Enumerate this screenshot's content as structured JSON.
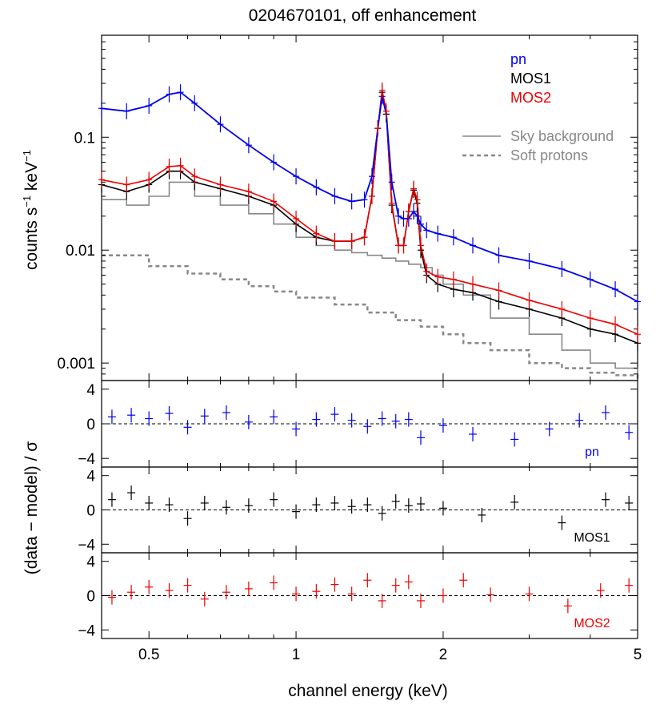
{
  "figure": {
    "title": "0204670101, off enhancement",
    "xlabel": "channel energy (keV)",
    "ylabel_main": "counts s",
    "ylabel_main_sup1": "−1",
    "ylabel_main_mid": " keV",
    "ylabel_main_sup2": "−1",
    "ylabel_resid": "(data − model) / σ"
  },
  "colors": {
    "pn": "#0000ee",
    "mos1": "#000000",
    "mos2": "#ee0000",
    "sky": "#888888",
    "sp": "#888888"
  },
  "chart_data": [
    {
      "type": "line",
      "panel": "spectrum",
      "xscale": "log",
      "yscale": "log",
      "xlim": [
        0.4,
        5.0
      ],
      "ylim": [
        0.0007,
        0.8
      ],
      "xticks": [
        0.5,
        1,
        2,
        5
      ],
      "xtick_labels": [
        "0.5",
        "1",
        "2",
        "5"
      ],
      "yticks": [
        0.001,
        0.01,
        0.1
      ],
      "ytick_labels": [
        "0.001",
        "0.01",
        "0.1"
      ],
      "legend": [
        {
          "label": "pn",
          "color": "#0000ee"
        },
        {
          "label": "MOS1",
          "color": "#000000"
        },
        {
          "label": "MOS2",
          "color": "#ee0000"
        }
      ],
      "legend2": [
        {
          "label": "Sky background",
          "style": "solid"
        },
        {
          "label": "Soft protons",
          "style": "dashed"
        }
      ],
      "series": [
        {
          "name": "pn",
          "x": [
            0.4,
            0.45,
            0.5,
            0.55,
            0.58,
            0.62,
            0.7,
            0.8,
            0.9,
            1.0,
            1.1,
            1.2,
            1.3,
            1.38,
            1.43,
            1.47,
            1.5,
            1.53,
            1.57,
            1.62,
            1.66,
            1.7,
            1.74,
            1.77,
            1.8,
            1.85,
            1.95,
            2.1,
            2.3,
            2.6,
            3.0,
            3.5,
            4.0,
            4.5,
            5.0
          ],
          "y": [
            0.18,
            0.17,
            0.19,
            0.24,
            0.25,
            0.2,
            0.13,
            0.085,
            0.06,
            0.045,
            0.036,
            0.03,
            0.027,
            0.028,
            0.045,
            0.12,
            0.23,
            0.16,
            0.04,
            0.02,
            0.019,
            0.019,
            0.022,
            0.02,
            0.017,
            0.015,
            0.014,
            0.013,
            0.011,
            0.009,
            0.008,
            0.0068,
            0.0055,
            0.0045,
            0.0035
          ]
        },
        {
          "name": "MOS1",
          "x": [
            0.4,
            0.45,
            0.5,
            0.55,
            0.58,
            0.62,
            0.7,
            0.8,
            0.9,
            1.0,
            1.1,
            1.2,
            1.3,
            1.38,
            1.43,
            1.47,
            1.5,
            1.53,
            1.57,
            1.62,
            1.66,
            1.7,
            1.74,
            1.77,
            1.8,
            1.85,
            1.95,
            2.1,
            2.3,
            2.6,
            3.0,
            3.5,
            4.0,
            4.5,
            5.0
          ],
          "y": [
            0.038,
            0.033,
            0.038,
            0.05,
            0.05,
            0.04,
            0.035,
            0.03,
            0.025,
            0.017,
            0.013,
            0.012,
            0.012,
            0.013,
            0.03,
            0.12,
            0.25,
            0.16,
            0.025,
            0.011,
            0.011,
            0.022,
            0.034,
            0.026,
            0.01,
            0.006,
            0.005,
            0.0045,
            0.0042,
            0.0035,
            0.003,
            0.0025,
            0.002,
            0.0018,
            0.0015
          ]
        },
        {
          "name": "MOS2",
          "x": [
            0.4,
            0.45,
            0.5,
            0.55,
            0.58,
            0.62,
            0.7,
            0.8,
            0.9,
            1.0,
            1.1,
            1.2,
            1.3,
            1.38,
            1.43,
            1.47,
            1.5,
            1.53,
            1.57,
            1.62,
            1.66,
            1.7,
            1.74,
            1.77,
            1.8,
            1.85,
            1.95,
            2.1,
            2.3,
            2.6,
            3.0,
            3.5,
            4.0,
            4.5,
            5.0
          ],
          "y": [
            0.042,
            0.038,
            0.042,
            0.055,
            0.056,
            0.045,
            0.038,
            0.033,
            0.027,
            0.019,
            0.014,
            0.012,
            0.012,
            0.013,
            0.03,
            0.12,
            0.26,
            0.17,
            0.026,
            0.011,
            0.011,
            0.022,
            0.035,
            0.028,
            0.011,
            0.0065,
            0.0058,
            0.0055,
            0.005,
            0.0044,
            0.0036,
            0.003,
            0.0025,
            0.0022,
            0.0018
          ]
        },
        {
          "name": "Sky background",
          "x": [
            0.4,
            0.45,
            0.5,
            0.55,
            0.58,
            0.62,
            0.7,
            0.8,
            0.9,
            1.0,
            1.1,
            1.2,
            1.3,
            1.4,
            1.5,
            1.6,
            1.7,
            1.8,
            1.9,
            2.0,
            2.2,
            2.5,
            3.0,
            3.5,
            4.0,
            4.5,
            5.0
          ],
          "y": [
            0.028,
            0.025,
            0.03,
            0.04,
            0.04,
            0.03,
            0.025,
            0.021,
            0.017,
            0.013,
            0.011,
            0.01,
            0.0095,
            0.009,
            0.0085,
            0.008,
            0.0075,
            0.007,
            0.006,
            0.005,
            0.004,
            0.0025,
            0.0018,
            0.0013,
            0.001,
            0.0009,
            0.0008
          ]
        },
        {
          "name": "Soft protons",
          "x": [
            0.4,
            0.5,
            0.6,
            0.7,
            0.8,
            0.9,
            1.0,
            1.2,
            1.4,
            1.6,
            1.8,
            2.0,
            2.2,
            2.5,
            3.0,
            3.5,
            4.0,
            4.5,
            5.0
          ],
          "y": [
            0.009,
            0.0072,
            0.0062,
            0.0055,
            0.0048,
            0.0043,
            0.0038,
            0.0033,
            0.0028,
            0.0024,
            0.0021,
            0.0018,
            0.0015,
            0.0013,
            0.001,
            0.0009,
            0.00082,
            0.00078,
            0.00072
          ]
        }
      ]
    },
    {
      "type": "scatter",
      "panel": "residuals-pn",
      "label": "pn",
      "ylim": [
        -5,
        5
      ],
      "yticks": [
        -4,
        0,
        4
      ],
      "ytick_labels": [
        "−4",
        "0",
        "4"
      ],
      "series": [
        {
          "name": "pn",
          "x": [
            0.42,
            0.46,
            0.5,
            0.55,
            0.6,
            0.65,
            0.72,
            0.8,
            0.9,
            1.0,
            1.1,
            1.2,
            1.3,
            1.4,
            1.5,
            1.6,
            1.7,
            1.8,
            2.0,
            2.3,
            2.8,
            3.3,
            3.8,
            4.3,
            4.8
          ],
          "y": [
            0.8,
            1.0,
            0.6,
            1.2,
            -0.4,
            0.9,
            1.3,
            0.2,
            0.8,
            -0.6,
            0.5,
            1.1,
            0.4,
            -0.3,
            0.6,
            0.3,
            0.5,
            -1.6,
            -0.2,
            -1.2,
            -1.8,
            -0.6,
            0.4,
            1.3,
            -1.0
          ]
        }
      ]
    },
    {
      "type": "scatter",
      "panel": "residuals-mos1",
      "label": "MOS1",
      "ylim": [
        -5,
        5
      ],
      "yticks": [
        -4,
        0,
        4
      ],
      "ytick_labels": [
        "−4",
        "0",
        "4"
      ],
      "series": [
        {
          "name": "MOS1",
          "x": [
            0.42,
            0.46,
            0.5,
            0.55,
            0.6,
            0.65,
            0.72,
            0.8,
            0.9,
            1.0,
            1.1,
            1.2,
            1.3,
            1.4,
            1.5,
            1.6,
            1.7,
            1.8,
            2.0,
            2.4,
            2.8,
            3.5,
            4.3,
            4.8
          ],
          "y": [
            1.2,
            2.0,
            0.8,
            0.6,
            -1.0,
            0.8,
            0.3,
            0.5,
            1.2,
            -0.2,
            0.6,
            0.8,
            0.4,
            0.6,
            -0.4,
            1.0,
            0.5,
            0.7,
            0.2,
            -0.6,
            0.9,
            -1.5,
            1.2,
            0.8
          ]
        }
      ]
    },
    {
      "type": "scatter",
      "panel": "residuals-mos2",
      "label": "MOS2",
      "ylim": [
        -5,
        5
      ],
      "yticks": [
        -4,
        0,
        4
      ],
      "ytick_labels": [
        "−4",
        "0",
        "4"
      ],
      "series": [
        {
          "name": "MOS2",
          "x": [
            0.42,
            0.46,
            0.5,
            0.55,
            0.6,
            0.65,
            0.72,
            0.8,
            0.9,
            1.0,
            1.1,
            1.2,
            1.3,
            1.4,
            1.5,
            1.6,
            1.7,
            1.8,
            2.0,
            2.2,
            2.5,
            3.0,
            3.6,
            4.2,
            4.8
          ],
          "y": [
            -0.2,
            0.4,
            1.0,
            0.6,
            1.2,
            -0.4,
            0.4,
            0.8,
            1.5,
            0.2,
            0.5,
            1.3,
            0.2,
            1.8,
            -0.6,
            1.2,
            1.6,
            -0.6,
            0.0,
            1.8,
            0.1,
            0.2,
            -1.2,
            0.6,
            1.2
          ]
        }
      ]
    }
  ]
}
